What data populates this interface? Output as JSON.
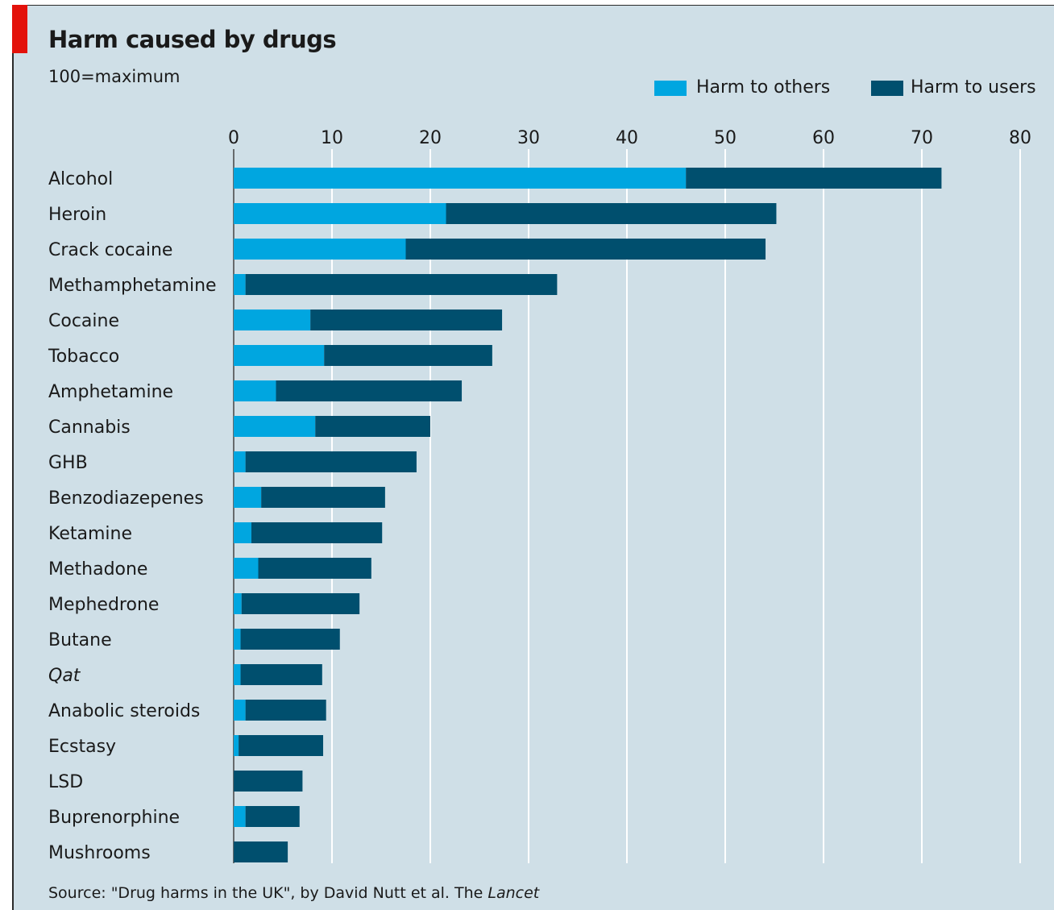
{
  "chart_data": {
    "type": "bar",
    "orientation": "horizontal",
    "stacked": true,
    "title": "Harm caused by drugs",
    "subtitle": "100=maximum",
    "categories": [
      "Alcohol",
      "Heroin",
      "Crack cocaine",
      "Methamphetamine",
      "Cocaine",
      "Tobacco",
      "Amphetamine",
      "Cannabis",
      "GHB",
      "Benzodiazepenes",
      "Ketamine",
      "Methadone",
      "Mephedrone",
      "Butane",
      "Qat",
      "Anabolic steroids",
      "Ecstasy",
      "LSD",
      "Buprenorphine",
      "Mushrooms"
    ],
    "italic_categories": [
      "Qat"
    ],
    "series": [
      {
        "name": "Harm to others",
        "color": "#00a6e0",
        "values": [
          46,
          21.6,
          17.5,
          1.2,
          7.8,
          9.2,
          4.3,
          8.3,
          1.2,
          2.8,
          1.8,
          2.5,
          0.8,
          0.7,
          0.7,
          1.2,
          0.5,
          0.0,
          1.2,
          0.0
        ]
      },
      {
        "name": "Harm to users",
        "color": "#004f6e",
        "values": [
          26,
          33.6,
          36.6,
          31.7,
          19.5,
          17.1,
          18.9,
          11.7,
          17.4,
          12.6,
          13.3,
          11.5,
          12.0,
          10.1,
          8.3,
          8.2,
          8.6,
          7.0,
          5.5,
          5.5
        ]
      }
    ],
    "xlim": [
      0,
      80
    ],
    "xticks": [
      0,
      10,
      20,
      30,
      40,
      50,
      60,
      70,
      80
    ],
    "x_axis_position": "top",
    "grid": true,
    "legend_position": "top-right",
    "source_prefix": "Source: \"Drug harms in the UK\", by David Nutt et al. The ",
    "source_journal": "Lancet"
  },
  "colors": {
    "background": "#cfdfe7",
    "accent": "#e3120b",
    "gridline": "#ffffff"
  }
}
